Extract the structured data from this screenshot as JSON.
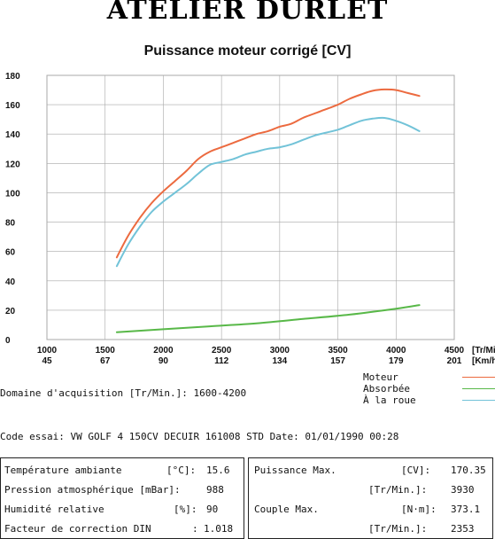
{
  "header": {
    "brand": "ATELIER DURLET",
    "title": "Puissance moteur corrigé [CV]"
  },
  "colors": {
    "moteur": "#ec6a3f",
    "roue": "#72c3d8",
    "absorbee": "#58b848",
    "grid": "#a8a8a8"
  },
  "chart_data": {
    "type": "line",
    "title": "Puissance moteur corrigé [CV]",
    "x_unit": "[Tr/Min]",
    "x2_unit": "[Km/h]",
    "xlim": [
      1000,
      4500
    ],
    "ylim": [
      0,
      180
    ],
    "x_ticks": [
      1000,
      1500,
      2000,
      2500,
      3000,
      3500,
      4000,
      4500
    ],
    "x_tick_labels": [
      "1000",
      "1500",
      "2000",
      "2500",
      "3000",
      "3500",
      "4000",
      "4500"
    ],
    "x2_tick_labels": [
      "45",
      "67",
      "90",
      "112",
      "134",
      "157",
      "179",
      "201"
    ],
    "y_ticks": [
      0,
      20,
      40,
      60,
      80,
      100,
      120,
      140,
      160,
      180
    ],
    "grid": true,
    "legend_position": "below-right",
    "series": [
      {
        "name": "Moteur",
        "color": "#ec6a3f",
        "x": [
          1600,
          1700,
          1800,
          1900,
          2000,
          2100,
          2200,
          2300,
          2400,
          2500,
          2600,
          2700,
          2800,
          2900,
          3000,
          3100,
          3200,
          3300,
          3400,
          3500,
          3600,
          3700,
          3800,
          3900,
          4000,
          4100,
          4200
        ],
        "values": [
          56,
          71,
          83,
          93,
          101,
          108,
          115,
          123,
          128,
          131,
          134,
          137,
          140,
          142,
          145,
          147,
          151,
          154,
          157,
          160,
          164,
          167,
          169.5,
          170.4,
          170,
          168,
          166
        ]
      },
      {
        "name": "Absorbée",
        "color": "#58b848",
        "x": [
          1600,
          2000,
          2400,
          2800,
          3200,
          3600,
          4000,
          4200
        ],
        "values": [
          5,
          7,
          9,
          11,
          14,
          17,
          21,
          23.5
        ]
      },
      {
        "name": "À la roue",
        "color": "#72c3d8",
        "x": [
          1600,
          1700,
          1800,
          1900,
          2000,
          2100,
          2200,
          2300,
          2400,
          2500,
          2600,
          2700,
          2800,
          2900,
          3000,
          3100,
          3200,
          3300,
          3400,
          3500,
          3600,
          3700,
          3800,
          3900,
          4000,
          4100,
          4200
        ],
        "values": [
          50,
          65,
          77,
          87,
          94,
          100,
          106,
          113,
          119,
          121,
          123,
          126,
          128,
          130,
          131,
          133,
          136,
          139,
          141,
          143,
          146,
          149,
          150.5,
          151,
          149,
          146,
          142
        ]
      }
    ]
  },
  "acquisition": {
    "text": "Domaine d'acquisition [Tr/Min.]: 1600-4200"
  },
  "legend": [
    {
      "label": "Moteur",
      "color": "#ec6a3f"
    },
    {
      "label": "Absorbée",
      "color": "#58b848"
    },
    {
      "label": "À la roue",
      "color": "#72c3d8"
    }
  ],
  "test_code": {
    "text": "Code essai: VW GOLF 4 150CV  DECUIR 161008 STD  Date: 01/01/1990 00:28"
  },
  "results": {
    "temp_label": "Température ambiante",
    "temp_unit": "[°C]:",
    "temp_value": "15.6",
    "pressure_label": "Pression atmosphérique [mBar]:",
    "pressure_value": "988",
    "humidity_label": "Humidité relative",
    "humidity_unit": "[%]:",
    "humidity_value": "90",
    "din_label": "Facteur de correction DIN",
    "din_sep": ":",
    "din_value": "1.018",
    "power_max_label": "Puissance Max.",
    "power_max_unit": "[CV]:",
    "power_max_value": "170.35",
    "power_rpm_unit": "[Tr/Min.]:",
    "power_rpm_value": "3930",
    "torque_max_label": "Couple Max.",
    "torque_max_unit": "[N·m]:",
    "torque_max_value": "373.1",
    "torque_rpm_unit": "[Tr/Min.]:",
    "torque_rpm_value": "2353"
  }
}
